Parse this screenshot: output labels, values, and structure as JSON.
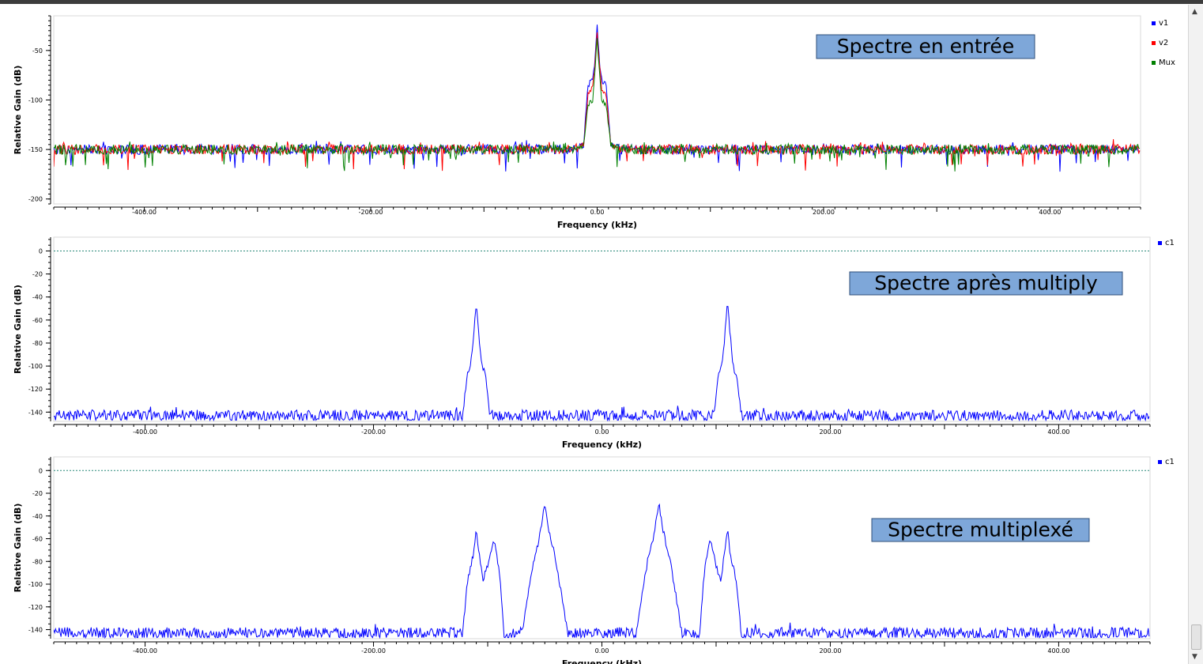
{
  "charts": [
    {
      "title_box": "Spectre en entrée",
      "xlabel": "Frequency (kHz)",
      "ylabel": "Relative Gain (dB)",
      "xticks": [
        "-400.00",
        "-200.00",
        "0.00",
        "200.00",
        "400.00"
      ],
      "yticks": [
        "-50",
        "-100",
        "-150",
        "-200"
      ],
      "legend": [
        {
          "name": "v1",
          "color": "#0000ff"
        },
        {
          "name": "v2",
          "color": "#ff0000"
        },
        {
          "name": "Mux",
          "color": "#008000"
        }
      ]
    },
    {
      "title_box": "Spectre après multiply",
      "xlabel": "Frequency (kHz)",
      "ylabel": "Relative Gain (dB)",
      "xticks": [
        "-400.00",
        "-200.00",
        "0.00",
        "200.00",
        "400.00"
      ],
      "yticks": [
        "0",
        "-20",
        "-40",
        "-60",
        "-80",
        "-100",
        "-120",
        "-140"
      ],
      "legend": [
        {
          "name": "c1",
          "color": "#0000ff"
        }
      ]
    },
    {
      "title_box": "Spectre multiplexé",
      "xlabel": "Frequency (kHz)",
      "ylabel": "Relative Gain (dB)",
      "xticks": [
        "-400.00",
        "-200.00",
        "0.00",
        "200.00",
        "400.00"
      ],
      "yticks": [
        "0",
        "-20",
        "-40",
        "-60",
        "-80",
        "-100",
        "-120",
        "-140"
      ],
      "legend": [
        {
          "name": "c1",
          "color": "#0000ff"
        }
      ]
    }
  ],
  "chart_data": [
    {
      "type": "line",
      "title": "",
      "xlabel": "Frequency (kHz)",
      "ylabel": "Relative Gain (dB)",
      "xlim": [
        -480,
        480
      ],
      "ylim": [
        -205,
        -15
      ],
      "grid": false,
      "legend_position": "right",
      "noise_floor": -150,
      "x": [
        -480,
        -20,
        -12,
        -8,
        -4,
        -2,
        0,
        2,
        4,
        8,
        12,
        20,
        480
      ],
      "series": [
        {
          "name": "v1",
          "color": "#0000ff",
          "values": [
            -150,
            -150,
            -145,
            -85,
            -80,
            -60,
            -22,
            -60,
            -80,
            -85,
            -145,
            -150,
            -150
          ]
        },
        {
          "name": "v2",
          "color": "#ff0000",
          "values": [
            -150,
            -150,
            -145,
            -95,
            -88,
            -65,
            -30,
            -65,
            -88,
            -95,
            -145,
            -150,
            -150
          ]
        },
        {
          "name": "Mux",
          "color": "#008000",
          "values": [
            -150,
            -150,
            -145,
            -105,
            -100,
            -70,
            -40,
            -70,
            -100,
            -105,
            -145,
            -150,
            -150
          ]
        }
      ]
    },
    {
      "type": "line",
      "title": "",
      "xlabel": "Frequency (kHz)",
      "ylabel": "Relative Gain (dB)",
      "xlim": [
        -480,
        480
      ],
      "ylim": [
        -148,
        12
      ],
      "grid": false,
      "legend_position": "right",
      "reference_line": 0,
      "noise_floor": -143,
      "x": [
        -480,
        -122,
        -118,
        -115,
        -112,
        -110,
        -108,
        -105,
        -102,
        -98,
        98,
        102,
        105,
        108,
        110,
        112,
        115,
        118,
        122,
        480
      ],
      "series": [
        {
          "name": "c1",
          "color": "#0000ff",
          "values": [
            -143,
            -143,
            -108,
            -100,
            -70,
            -45,
            -70,
            -100,
            -108,
            -143,
            -143,
            -108,
            -100,
            -70,
            -45,
            -70,
            -100,
            -108,
            -143,
            -143
          ]
        }
      ]
    },
    {
      "type": "line",
      "title": "",
      "xlabel": "Frequency (kHz)",
      "ylabel": "Relative Gain (dB)",
      "xlim": [
        -480,
        480
      ],
      "ylim": [
        -148,
        12
      ],
      "grid": false,
      "legend_position": "right",
      "reference_line": 0,
      "noise_floor": -143,
      "x": [
        -480,
        -122,
        -118,
        -112,
        -110,
        -108,
        -104,
        -100,
        -95,
        -90,
        -85,
        -80,
        -70,
        -60,
        -55,
        -50,
        -45,
        -40,
        -30,
        30,
        40,
        45,
        50,
        55,
        60,
        70,
        80,
        85,
        90,
        95,
        100,
        104,
        108,
        110,
        112,
        118,
        122,
        480
      ],
      "series": [
        {
          "name": "c1",
          "color": "#0000ff",
          "values": [
            -143,
            -143,
            -100,
            -70,
            -50,
            -70,
            -95,
            -85,
            -60,
            -85,
            -150,
            -143,
            -143,
            -80,
            -60,
            -30,
            -60,
            -80,
            -143,
            -143,
            -80,
            -60,
            -30,
            -60,
            -80,
            -143,
            -143,
            -150,
            -85,
            -60,
            -85,
            -95,
            -70,
            -50,
            -70,
            -100,
            -143,
            -143
          ]
        }
      ]
    }
  ]
}
